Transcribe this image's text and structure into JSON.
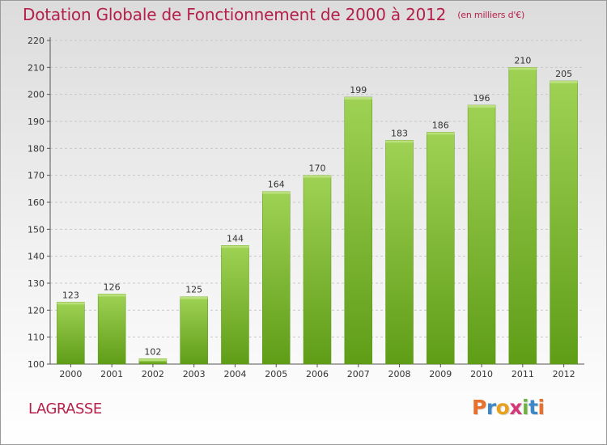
{
  "chart_data": {
    "type": "bar",
    "title": "Dotation Globale de Fonctionnement de 2000 à 2012",
    "subtitle": "(en milliers d'€)",
    "xlabel": "",
    "ylabel": "",
    "categories": [
      "2000",
      "2001",
      "2002",
      "2003",
      "2004",
      "2005",
      "2006",
      "2007",
      "2008",
      "2009",
      "2010",
      "2011",
      "2012"
    ],
    "values": [
      123,
      126,
      102,
      125,
      144,
      164,
      170,
      199,
      183,
      186,
      196,
      210,
      205
    ],
    "ylim": [
      100,
      220
    ],
    "yticks": [
      100,
      110,
      120,
      130,
      140,
      150,
      160,
      170,
      180,
      190,
      200,
      210,
      220
    ],
    "grid": true,
    "bar_color_top": "#9fd254",
    "bar_color_bottom": "#5f9d17",
    "title_color": "#b5204a"
  },
  "place_name": "LAGRASSE",
  "logo": {
    "letters": [
      "P",
      "r",
      "o",
      "x",
      "i",
      "t",
      "i"
    ],
    "colors": [
      "#e8702a",
      "#3f88c8",
      "#e8a020",
      "#d43a7a",
      "#6cb33f",
      "#3f88c8",
      "#e8702a"
    ]
  }
}
